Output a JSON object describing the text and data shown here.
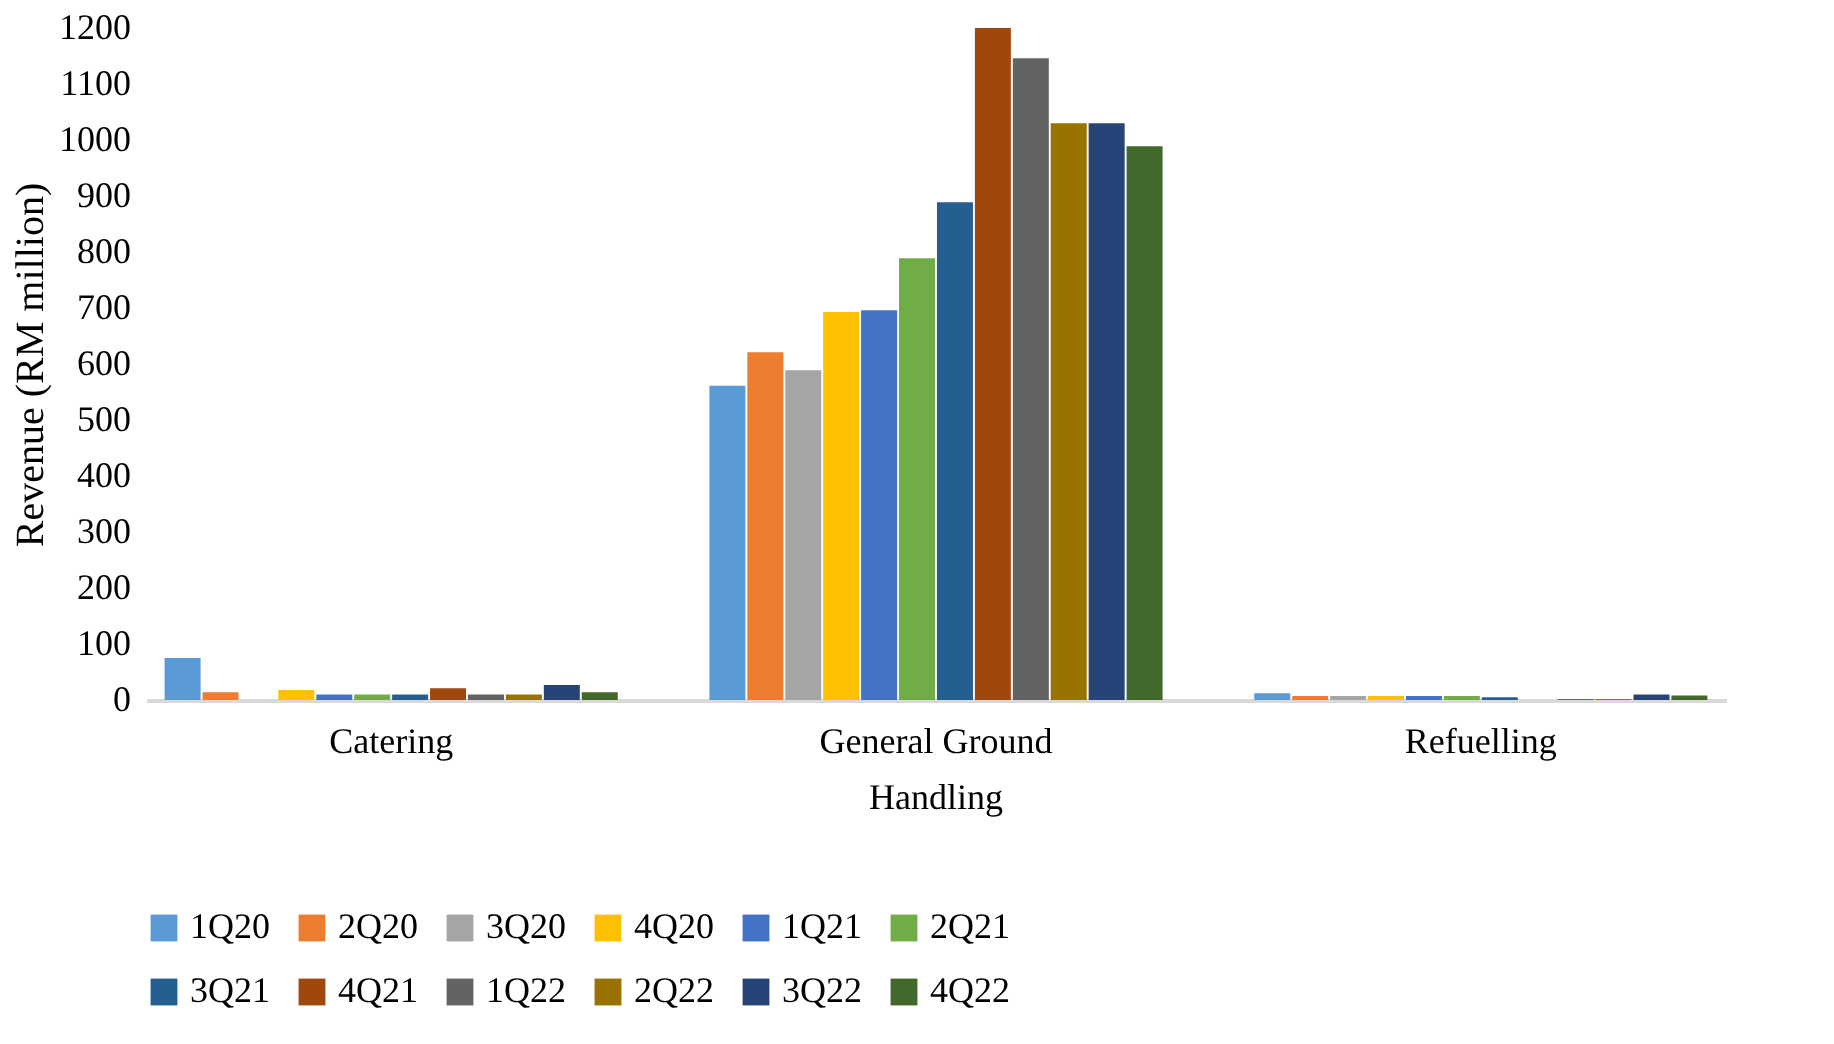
{
  "chart_data": {
    "type": "bar",
    "ylabel": "Revenue (RM million)",
    "categories": [
      "Catering",
      "General Ground Handling",
      "Refuelling"
    ],
    "series": [
      {
        "name": "1Q20",
        "color": "#5b9bd5",
        "values": [
          75,
          561,
          12
        ]
      },
      {
        "name": "2Q20",
        "color": "#ed7d31",
        "values": [
          14,
          621,
          7
        ]
      },
      {
        "name": "3Q20",
        "color": "#a5a5a5",
        "values": [
          0,
          589,
          7
        ]
      },
      {
        "name": "4Q20",
        "color": "#ffc000",
        "values": [
          18,
          693,
          7
        ]
      },
      {
        "name": "1Q21",
        "color": "#4472c4",
        "values": [
          10,
          696,
          7
        ]
      },
      {
        "name": "2Q21",
        "color": "#70ad47",
        "values": [
          10,
          789,
          7
        ]
      },
      {
        "name": "3Q21",
        "color": "#255e91",
        "values": [
          10,
          889,
          5
        ]
      },
      {
        "name": "4Q21",
        "color": "#9e480e",
        "values": [
          21,
          1200,
          0
        ]
      },
      {
        "name": "1Q22",
        "color": "#636363",
        "values": [
          10,
          1146,
          2
        ]
      },
      {
        "name": "2Q22",
        "color": "#997300",
        "values": [
          10,
          1030,
          2
        ]
      },
      {
        "name": "3Q22",
        "color": "#264478",
        "values": [
          27,
          1030,
          10
        ]
      },
      {
        "name": "4Q22",
        "color": "#43682b",
        "values": [
          14,
          989,
          8
        ]
      }
    ],
    "ylim": [
      0,
      1200
    ],
    "yticks": [
      0,
      100,
      200,
      300,
      400,
      500,
      600,
      700,
      800,
      900,
      1000,
      1100,
      1200
    ],
    "grid": false,
    "legend": "bottom"
  }
}
